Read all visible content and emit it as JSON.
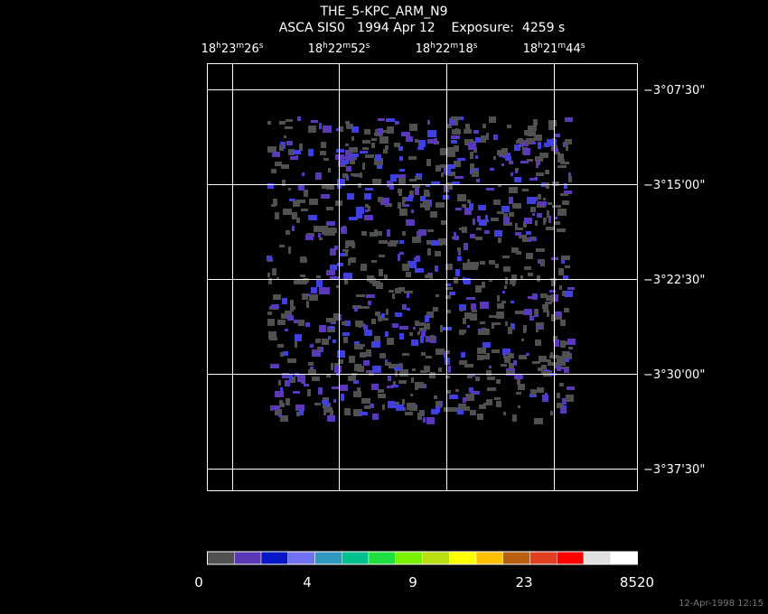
{
  "header": {
    "title": "THE_5-KPC_ARM_N9",
    "subtitle": "ASCA SIS0   1994 Apr 12    Exposure:  4259 s"
  },
  "ra_labels": [
    "18h23m26s",
    "18h22m52s",
    "18h22m18s",
    "18h21m44s"
  ],
  "dec_labels": [
    "−3°07'30\"",
    "−3°15'00\"",
    "−3°22'30\"",
    "−3°30'00\"",
    "−3°37'30\""
  ],
  "colorbar": {
    "labels": [
      "0",
      "4",
      "9",
      "23",
      "8520"
    ],
    "colors": [
      "#505050",
      "#5a38b8",
      "#0818c8",
      "#7070f0",
      "#3098c0",
      "#00c090",
      "#20e040",
      "#78f000",
      "#b8e010",
      "#ffff00",
      "#ffc000",
      "#b86010",
      "#e04020",
      "#ff0000",
      "#e0e0e0",
      "#ffffff"
    ]
  },
  "footer": {
    "timestamp": "12-Apr-1998 12:15"
  }
}
